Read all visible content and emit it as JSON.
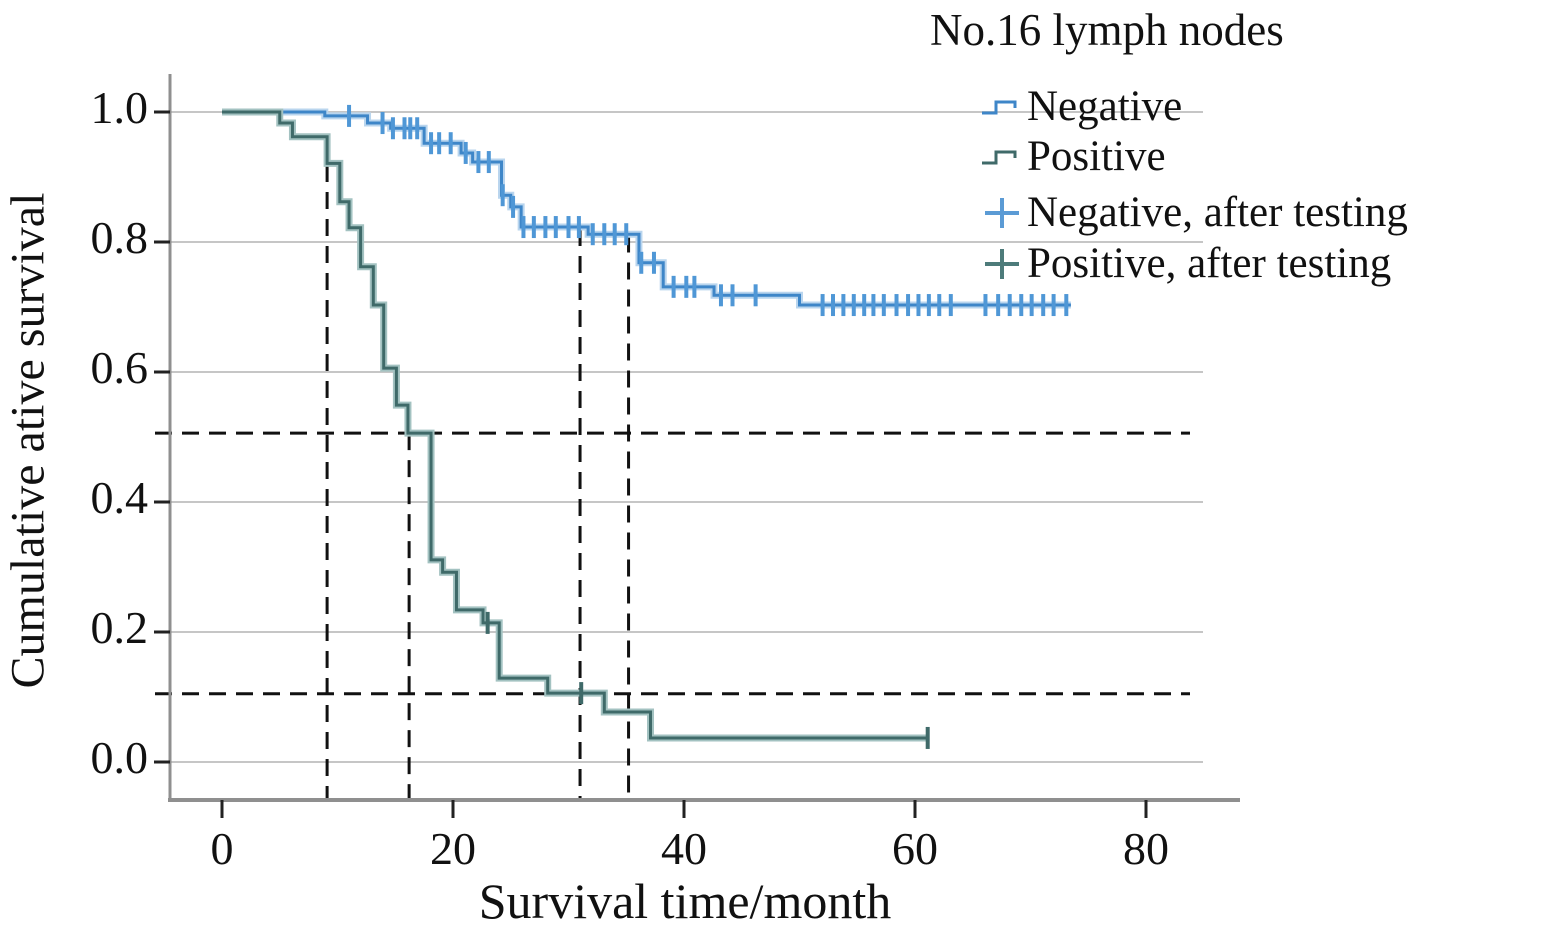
{
  "title": "No.16 lymph nodes",
  "chart_data": {
    "type": "line",
    "subtype": "kaplan-meier-step-survival",
    "title": "No.16 lymph nodes",
    "xlabel": "Survival time/month",
    "ylabel": "Cumulative ative survival",
    "xlim": [
      0,
      85
    ],
    "ylim": [
      0.0,
      1.0
    ],
    "x_ticks": [
      {
        "label": "0",
        "value": 0
      },
      {
        "label": "20",
        "value": 20
      },
      {
        "label": "40",
        "value": 40
      },
      {
        "label": "60",
        "value": 60
      },
      {
        "label": "80",
        "value": 80
      }
    ],
    "y_ticks": [
      {
        "label": "1.0",
        "value": 1.0
      },
      {
        "label": "0.8",
        "value": 0.8
      },
      {
        "label": "0.6",
        "value": 0.6
      },
      {
        "label": "0.4",
        "value": 0.4
      },
      {
        "label": "0.2",
        "value": 0.2
      },
      {
        "label": "0.0",
        "value": 0.0
      }
    ],
    "grid": "horizontal-only",
    "legend_position": "top-right-outside",
    "series": [
      {
        "name": "Negative",
        "color": "#3e86c8",
        "halo": "#b9d5ee",
        "censor_color": "#4f97d6",
        "steps": [
          [
            0,
            1.0
          ],
          [
            8.9,
            0.994
          ],
          [
            12.6,
            0.983
          ],
          [
            14.6,
            0.975
          ],
          [
            17.5,
            0.952
          ],
          [
            20.7,
            0.937
          ],
          [
            21.7,
            0.923
          ],
          [
            24.2,
            0.872
          ],
          [
            25.0,
            0.854
          ],
          [
            25.9,
            0.823
          ],
          [
            31.7,
            0.812
          ],
          [
            36.1,
            0.768
          ],
          [
            38.2,
            0.731
          ],
          [
            42.6,
            0.718
          ],
          [
            50.0,
            0.703
          ]
        ],
        "end_x": 73.5,
        "censors": [
          [
            11.0,
            0.994
          ],
          [
            13.9,
            0.983
          ],
          [
            14.8,
            0.975
          ],
          [
            15.8,
            0.975
          ],
          [
            16.3,
            0.975
          ],
          [
            16.9,
            0.975
          ],
          [
            18.1,
            0.952
          ],
          [
            18.8,
            0.952
          ],
          [
            19.8,
            0.952
          ],
          [
            21.1,
            0.937
          ],
          [
            22.2,
            0.923
          ],
          [
            23.1,
            0.923
          ],
          [
            24.3,
            0.872
          ],
          [
            25.2,
            0.854
          ],
          [
            26.1,
            0.823
          ],
          [
            27.0,
            0.823
          ],
          [
            28.0,
            0.823
          ],
          [
            28.9,
            0.823
          ],
          [
            30.0,
            0.823
          ],
          [
            30.9,
            0.823
          ],
          [
            32.1,
            0.812
          ],
          [
            33.1,
            0.812
          ],
          [
            34.0,
            0.812
          ],
          [
            35.0,
            0.812
          ],
          [
            36.3,
            0.768
          ],
          [
            37.4,
            0.768
          ],
          [
            39.1,
            0.731
          ],
          [
            40.2,
            0.731
          ],
          [
            40.9,
            0.731
          ],
          [
            43.2,
            0.718
          ],
          [
            44.2,
            0.718
          ],
          [
            46.2,
            0.718
          ],
          [
            52.0,
            0.703
          ],
          [
            52.9,
            0.703
          ],
          [
            53.8,
            0.703
          ],
          [
            54.7,
            0.703
          ],
          [
            55.6,
            0.703
          ],
          [
            56.4,
            0.703
          ],
          [
            57.3,
            0.703
          ],
          [
            58.4,
            0.703
          ],
          [
            59.4,
            0.703
          ],
          [
            60.3,
            0.703
          ],
          [
            61.2,
            0.703
          ],
          [
            62.1,
            0.703
          ],
          [
            63.1,
            0.703
          ],
          [
            66.1,
            0.703
          ],
          [
            67.2,
            0.703
          ],
          [
            68.2,
            0.703
          ],
          [
            69.2,
            0.703
          ],
          [
            70.1,
            0.703
          ],
          [
            71.1,
            0.703
          ],
          [
            72.0,
            0.703
          ],
          [
            73.1,
            0.703
          ]
        ]
      },
      {
        "name": "Positive",
        "color": "#3f6a69",
        "halo": "#a3c2c1",
        "censor_color": "#3f6a69",
        "steps": [
          [
            0,
            1.0
          ],
          [
            5.0,
            0.983
          ],
          [
            6.1,
            0.962
          ],
          [
            9.1,
            0.921
          ],
          [
            10.2,
            0.862
          ],
          [
            11.0,
            0.822
          ],
          [
            12.0,
            0.762
          ],
          [
            13.1,
            0.703
          ],
          [
            14.0,
            0.606
          ],
          [
            15.1,
            0.549
          ],
          [
            16.1,
            0.506
          ],
          [
            18.1,
            0.311
          ],
          [
            19.1,
            0.292
          ],
          [
            20.3,
            0.234
          ],
          [
            22.6,
            0.214
          ],
          [
            24.0,
            0.129
          ],
          [
            28.2,
            0.106
          ],
          [
            33.1,
            0.077
          ],
          [
            37.1,
            0.037
          ]
        ],
        "end_x": 61.2,
        "censors": [
          [
            23.0,
            0.214
          ],
          [
            31.1,
            0.106
          ],
          [
            61.1,
            0.037
          ]
        ]
      }
    ],
    "legend": [
      {
        "label": "Negative",
        "marker": "step",
        "color": "#3e86c8"
      },
      {
        "label": "Positive",
        "marker": "step",
        "color": "#3f6a69"
      },
      {
        "label": "Negative, after testing",
        "marker": "plus",
        "color": "#5b9bd5"
      },
      {
        "label": "Positive, after testing",
        "marker": "plus",
        "color": "#4d7b7a"
      }
    ],
    "reference_lines": {
      "style": "black-dashed",
      "horizontal": [
        {
          "y": 0.506,
          "note": "0.5 survival reference"
        },
        {
          "y": 0.105,
          "note": "0.1 survival reference"
        }
      ],
      "vertical": [
        {
          "x": 9.1,
          "y_top": 0.96
        },
        {
          "x": 16.2,
          "y_top": 0.506
        },
        {
          "x": 31.0,
          "y_top": 0.82
        },
        {
          "x": 35.2,
          "y_top": 0.81
        }
      ]
    },
    "colors": {
      "grid": "#c6c6c6",
      "spine": "#8f8f8f",
      "axis_tick": "#222222",
      "reference": "#111111",
      "text": "#111111",
      "background": "#ffffff"
    }
  }
}
